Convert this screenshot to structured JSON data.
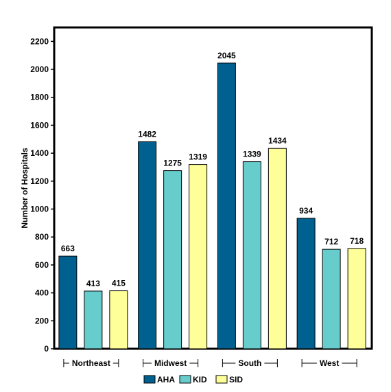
{
  "chart_data": {
    "type": "bar",
    "title": "",
    "xlabel": "",
    "ylabel": "Number of Hospitals",
    "categories": [
      "Northeast",
      "Midwest",
      "South",
      "West"
    ],
    "series": [
      {
        "name": "AHA",
        "color": "#00608f",
        "values": [
          663,
          1482,
          2045,
          934
        ]
      },
      {
        "name": "KID",
        "color": "#66cccc",
        "values": [
          413,
          1275,
          1339,
          712
        ]
      },
      {
        "name": "SID",
        "color": "#ffff99",
        "values": [
          415,
          1319,
          1434,
          718
        ]
      }
    ],
    "ylim": [
      0,
      2300
    ],
    "yticks": [
      0,
      200,
      400,
      600,
      800,
      1000,
      1200,
      1400,
      1600,
      1800,
      2000,
      2200
    ],
    "grid": false,
    "legend_position": "bottom"
  }
}
